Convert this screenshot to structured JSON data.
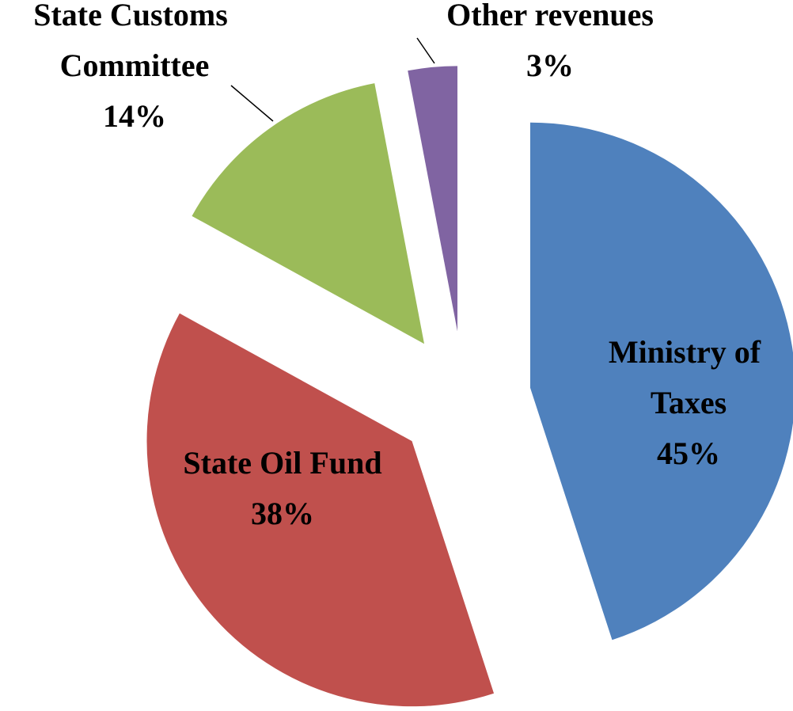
{
  "chart_data": {
    "type": "pie",
    "categories": [
      "Ministry of Taxes",
      "State Oil Fund",
      "State Customs Committee",
      "Other revenues"
    ],
    "values": [
      45,
      38,
      14,
      3
    ],
    "value_labels": [
      "45%",
      "38%",
      "14%",
      "3%"
    ],
    "colors": [
      "#4f81bd",
      "#c0504d",
      "#9bbb59",
      "#8064a2"
    ]
  }
}
